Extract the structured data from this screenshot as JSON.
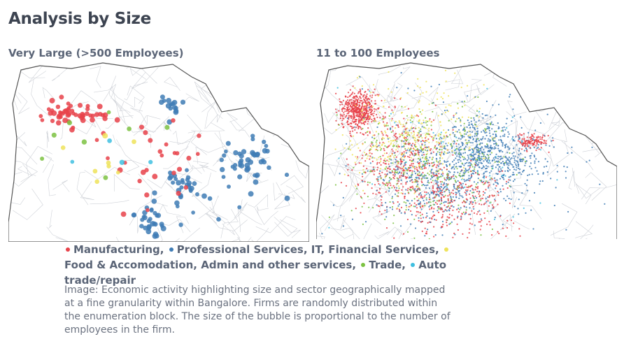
{
  "header": {
    "title": "Analysis by Size"
  },
  "panels": [
    {
      "label": "Very Large (>500 Employees)"
    },
    {
      "label": "11 to 100 Employees"
    }
  ],
  "legend": [
    {
      "label": "Manufacturing,",
      "color": "#e8424a"
    },
    {
      "label": "Professional Services, IT, Financial Services,",
      "color": "#3f7cb5"
    },
    {
      "label": "Food & Accomodation, Admin and other services,",
      "color": "#efe35a"
    },
    {
      "label": "Trade,",
      "color": "#7cc242"
    },
    {
      "label": "Auto trade/repair",
      "color": "#3fbfe0"
    }
  ],
  "caption": [
    "Image: Economic activity highlighting size and sector geographically mapped",
    "at a fine granularity within Bangalore. Firms are randomly distributed within",
    "the enumeration block. The size of the bubble is proportional to the number of",
    "employees in the firm."
  ]
}
